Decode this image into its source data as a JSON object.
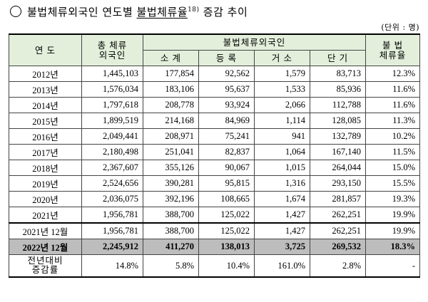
{
  "title": {
    "main": "불법체류외국인 연도별 ",
    "underlined": "불법체류율",
    "footnote": "18)",
    "suffix": " 증감 추이"
  },
  "unit": "(단위 : 명)",
  "headers": {
    "year": "연 도",
    "total_1": "총 체류",
    "total_2": "외국인",
    "illegal_group": "불법체류외국인",
    "subtotal": "소 계",
    "registered": "등 록",
    "residence": "거 소",
    "short_term": "단 기",
    "rate_1": "불 법",
    "rate_2": "체류율"
  },
  "rows": [
    {
      "year": "2012년",
      "total": "1,445,103",
      "subtotal": "177,854",
      "registered": "92,562",
      "residence": "1,579",
      "short_term": "83,713",
      "rate": "12.3%"
    },
    {
      "year": "2013년",
      "total": "1,576,034",
      "subtotal": "183,106",
      "registered": "95,637",
      "residence": "1,533",
      "short_term": "85,936",
      "rate": "11.6%"
    },
    {
      "year": "2014년",
      "total": "1,797,618",
      "subtotal": "208,778",
      "registered": "93,924",
      "residence": "2,066",
      "short_term": "112,788",
      "rate": "11.6%"
    },
    {
      "year": "2015년",
      "total": "1,899,519",
      "subtotal": "214,168",
      "registered": "84,969",
      "residence": "1,114",
      "short_term": "128,085",
      "rate": "11.3%"
    },
    {
      "year": "2016년",
      "total": "2,049,441",
      "subtotal": "208,971",
      "registered": "75,241",
      "residence": "941",
      "short_term": "132,789",
      "rate": "10.2%"
    },
    {
      "year": "2017년",
      "total": "2,180,498",
      "subtotal": "251,041",
      "registered": "82,837",
      "residence": "1,064",
      "short_term": "167,140",
      "rate": "11.5%"
    },
    {
      "year": "2018년",
      "total": "2,367,607",
      "subtotal": "355,126",
      "registered": "90,067",
      "residence": "1,015",
      "short_term": "264,044",
      "rate": "15.0%"
    },
    {
      "year": "2019년",
      "total": "2,524,656",
      "subtotal": "390,281",
      "registered": "95,815",
      "residence": "1,316",
      "short_term": "293,150",
      "rate": "15.5%"
    },
    {
      "year": "2020년",
      "total": "2,036,075",
      "subtotal": "392,196",
      "registered": "108,665",
      "residence": "1,674",
      "short_term": "281,857",
      "rate": "19.3%"
    },
    {
      "year": "2021년",
      "total": "1,956,781",
      "subtotal": "388,700",
      "registered": "125,022",
      "residence": "1,427",
      "short_term": "262,251",
      "rate": "19.9%"
    }
  ],
  "dec2021": {
    "year": "2021년 12월",
    "total": "1,956,781",
    "subtotal": "388,700",
    "registered": "125,022",
    "residence": "1,427",
    "short_term": "262,251",
    "rate": "19.9%"
  },
  "dec2022": {
    "year": "2022년 12월",
    "total": "2,245,912",
    "subtotal": "411,270",
    "registered": "138,013",
    "residence": "3,725",
    "short_term": "269,532",
    "rate": "18.3%"
  },
  "change": {
    "label_1": "전년대비",
    "label_2": "증감률",
    "total": "14.8%",
    "subtotal": "5.8%",
    "registered": "10.4%",
    "residence": "161.0%",
    "short_term": "2.8%",
    "rate": "-"
  }
}
